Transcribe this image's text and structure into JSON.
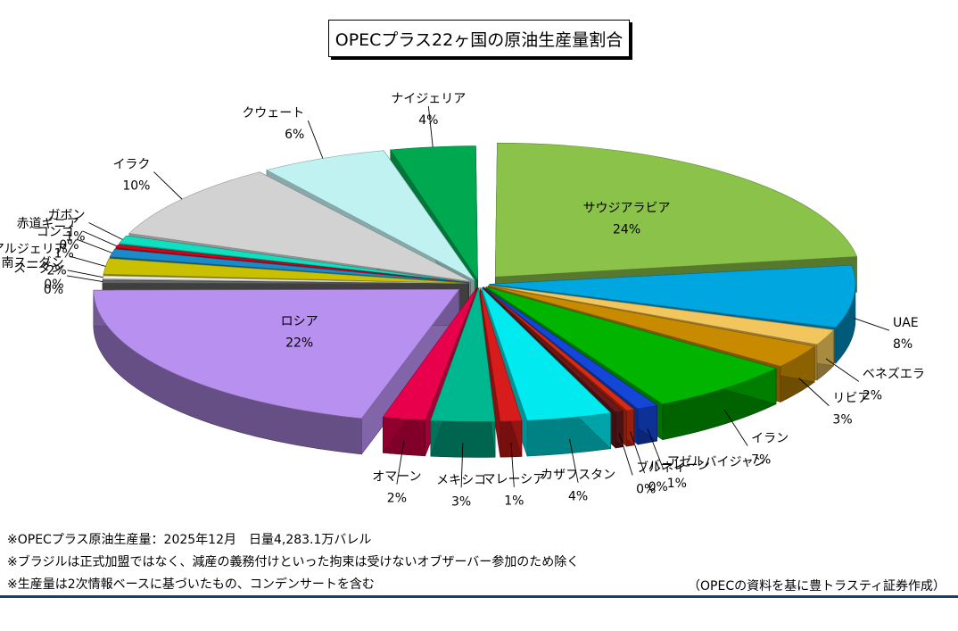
{
  "title": "OPECプラス22ヶ国の原油生産量割合",
  "notes": [
    "※OPECプラス原油生産量：2025年12月　日量4,283.1万バレル",
    "※ブラジルは正式加盟ではなく、減産の義務付けといった拘束は受けないオブザーバー参加のため除く",
    "※生産量は2次情報ベースに基づいたもの、コンデンサートを含む"
  ],
  "source": "（OPECの資料を基に豊トラスティ証券作成）",
  "chart_data": {
    "type": "pie",
    "title": "OPECプラス22ヶ国の原油生産量割合",
    "unit": "%",
    "slices": [
      {
        "name": "サウジアラビア",
        "value": 24,
        "label": "24%",
        "color": "#8bc34a"
      },
      {
        "name": "UAE",
        "value": 8,
        "label": "8%",
        "color": "#00a6e0"
      },
      {
        "name": "ベネズエラ",
        "value": 2,
        "label": "2%",
        "color": "#f2c65c"
      },
      {
        "name": "リビア",
        "value": 3,
        "label": "3%",
        "color": "#c88b00"
      },
      {
        "name": "イラン",
        "value": 7,
        "label": "7%",
        "color": "#00b400"
      },
      {
        "name": "アゼルバイジャン",
        "value": 1,
        "label": "1%",
        "color": "#1446d8"
      },
      {
        "name": "バーレーン",
        "value": 0,
        "label": "0%",
        "color": "#d82c10"
      },
      {
        "name": "ブルネイ",
        "value": 0,
        "label": "0%",
        "color": "#6a1a1a"
      },
      {
        "name": "カザフスタン",
        "value": 4,
        "label": "4%",
        "color": "#00eaf0"
      },
      {
        "name": "マレーシア",
        "value": 1,
        "label": "1%",
        "color": "#d81c1c"
      },
      {
        "name": "メキシコ",
        "value": 3,
        "label": "3%",
        "color": "#00b890"
      },
      {
        "name": "オマーン",
        "value": 2,
        "label": "2%",
        "color": "#e8004c"
      },
      {
        "name": "ロシア",
        "value": 22,
        "label": "22%",
        "color": "#b890f0"
      },
      {
        "name": "スーダン",
        "value": 0,
        "label": "0%",
        "color": "#666666"
      },
      {
        "name": "南スーダン",
        "value": 0,
        "label": "0%",
        "color": "#eeeeee"
      },
      {
        "name": "アルジェリア",
        "value": 2,
        "label": "2%",
        "color": "#c8c000"
      },
      {
        "name": "コンゴ",
        "value": 1,
        "label": "1%",
        "color": "#1a8ac8"
      },
      {
        "name": "赤道ギニア",
        "value": 0,
        "label": "0%",
        "color": "#e0001a"
      },
      {
        "name": "ガボン",
        "value": 1,
        "label": "1%",
        "color": "#10e0c0"
      },
      {
        "name": "イラク",
        "value": 10,
        "label": "10%",
        "color": "#d2d2d2"
      },
      {
        "name": "クウェート",
        "value": 6,
        "label": "6%",
        "color": "#c0f2f2"
      },
      {
        "name": "ナイジェリア",
        "value": 4,
        "label": "4%",
        "color": "#00a850"
      }
    ]
  }
}
